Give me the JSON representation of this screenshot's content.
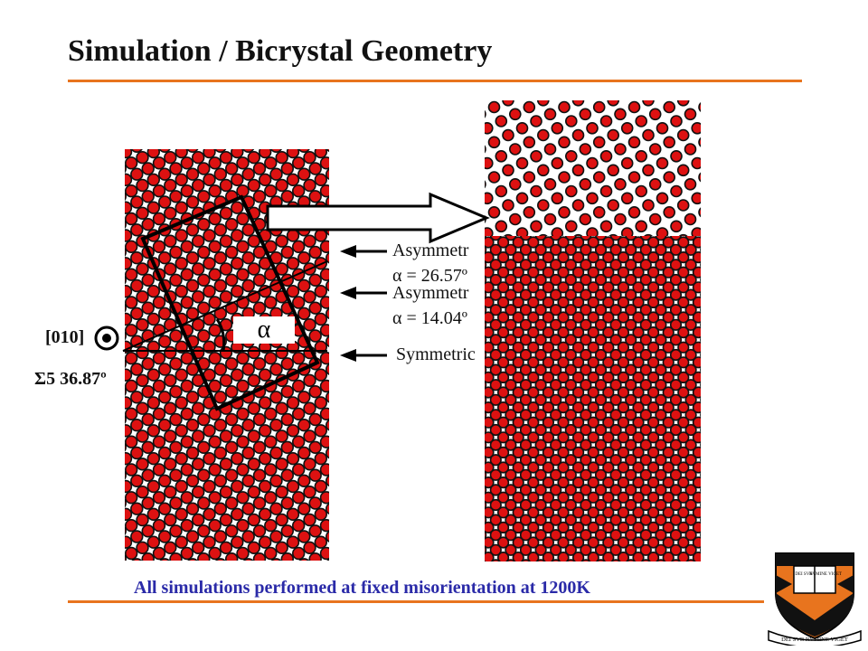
{
  "slide": {
    "title": "Simulation / Bicrystal Geometry",
    "footer": "All simulations performed at fixed misorientation at 1200K"
  },
  "figure": {
    "direction_label": "[010]",
    "sigma_label": "Σ5 36.87º",
    "angle_symbol": "α",
    "boundary_labels": [
      {
        "line1": "Asymmetr",
        "line2": "α = 26.57º"
      },
      {
        "line1": "Asymmetr",
        "line2": "α = 14.04º"
      },
      {
        "line1": "Symmetric",
        "line2": ""
      }
    ]
  },
  "colors": {
    "accent_rule": "#e8741e",
    "atom_fill": "#dd1111",
    "atom_stroke": "#111111",
    "footer_text": "#2a2aa8",
    "crest_orange": "#e8741e"
  },
  "logo": {
    "book_left": "DEI SVB",
    "book_right": "NVMINE VIGET",
    "ribbon": "DEI SVB NVMINE VIGET"
  }
}
